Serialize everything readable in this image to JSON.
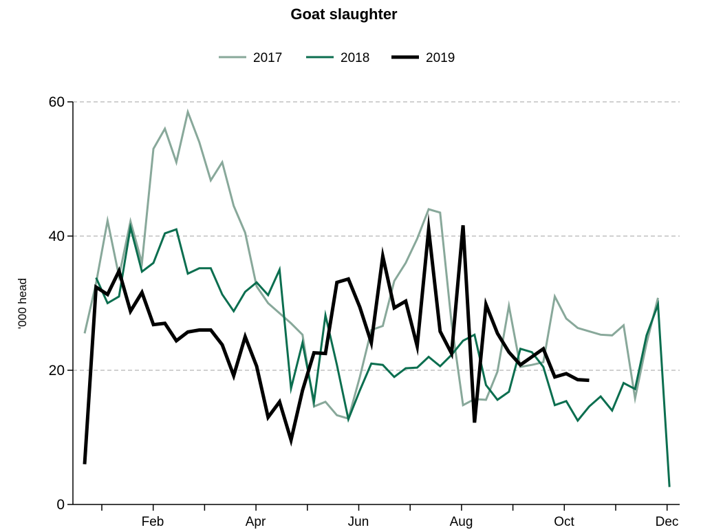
{
  "chart_data": {
    "type": "line",
    "title": "Goat slaughter",
    "xlabel": "",
    "ylabel": "'000 head",
    "ylim": [
      0,
      60
    ],
    "yticks": [
      "0",
      "20",
      "40",
      "60"
    ],
    "xticks": [
      "Feb",
      "Apr",
      "Jun",
      "Aug",
      "Oct",
      "Dec"
    ],
    "grid": "horizontal dashed",
    "legend_position": "top-center",
    "series": [
      {
        "name": "2017",
        "color": "#88a89a",
        "values": [
          25.5,
          33.0,
          42.3,
          34.0,
          42.2,
          36.0,
          53.0,
          56.0,
          51.0,
          58.5,
          54.0,
          48.3,
          51.0,
          44.5,
          40.5,
          32.5,
          30.0,
          28.5,
          27.0,
          25.3,
          14.6,
          15.3,
          13.3,
          12.8,
          19.0,
          26.0,
          26.6,
          33.3,
          36.0,
          39.6,
          44.0,
          43.5,
          27.0,
          14.8,
          15.7,
          15.6,
          19.8,
          29.6,
          20.5,
          20.8,
          21.2,
          31.0,
          27.7,
          26.3,
          25.8,
          25.3,
          25.2,
          26.7,
          15.8,
          24.0,
          30.8
        ]
      },
      {
        "name": "2018",
        "color": "#0b6e4f",
        "values": [
          null,
          33.8,
          30.0,
          31.0,
          41.3,
          34.7,
          36.0,
          40.4,
          41.0,
          34.4,
          35.2,
          35.2,
          31.3,
          28.8,
          31.7,
          33.1,
          31.2,
          35.0,
          17.3,
          24.1,
          15.3,
          28.2,
          20.8,
          12.7,
          17.0,
          21.0,
          20.8,
          19.0,
          20.3,
          20.4,
          22.0,
          20.6,
          22.3,
          24.4,
          25.3,
          17.8,
          15.6,
          16.8,
          23.2,
          22.7,
          20.5,
          14.8,
          15.4,
          12.5,
          14.6,
          16.1,
          14.0,
          18.1,
          17.2,
          25.2,
          29.8,
          2.6
        ]
      },
      {
        "name": "2019",
        "color": "#000000",
        "values": [
          6.0,
          32.4,
          31.3,
          34.8,
          28.8,
          31.6,
          26.8,
          27.0,
          24.4,
          25.7,
          26.0,
          26.0,
          23.8,
          19.2,
          25.0,
          20.6,
          13.0,
          15.3,
          9.6,
          17.0,
          22.6,
          22.5,
          33.1,
          33.6,
          29.4,
          24.1,
          37.0,
          29.3,
          30.3,
          23.6,
          41.0,
          25.8,
          22.5,
          41.6,
          12.2,
          29.8,
          25.5,
          22.7,
          20.8,
          22.0,
          23.2,
          19.0,
          19.5,
          18.6,
          18.5
        ]
      }
    ]
  }
}
